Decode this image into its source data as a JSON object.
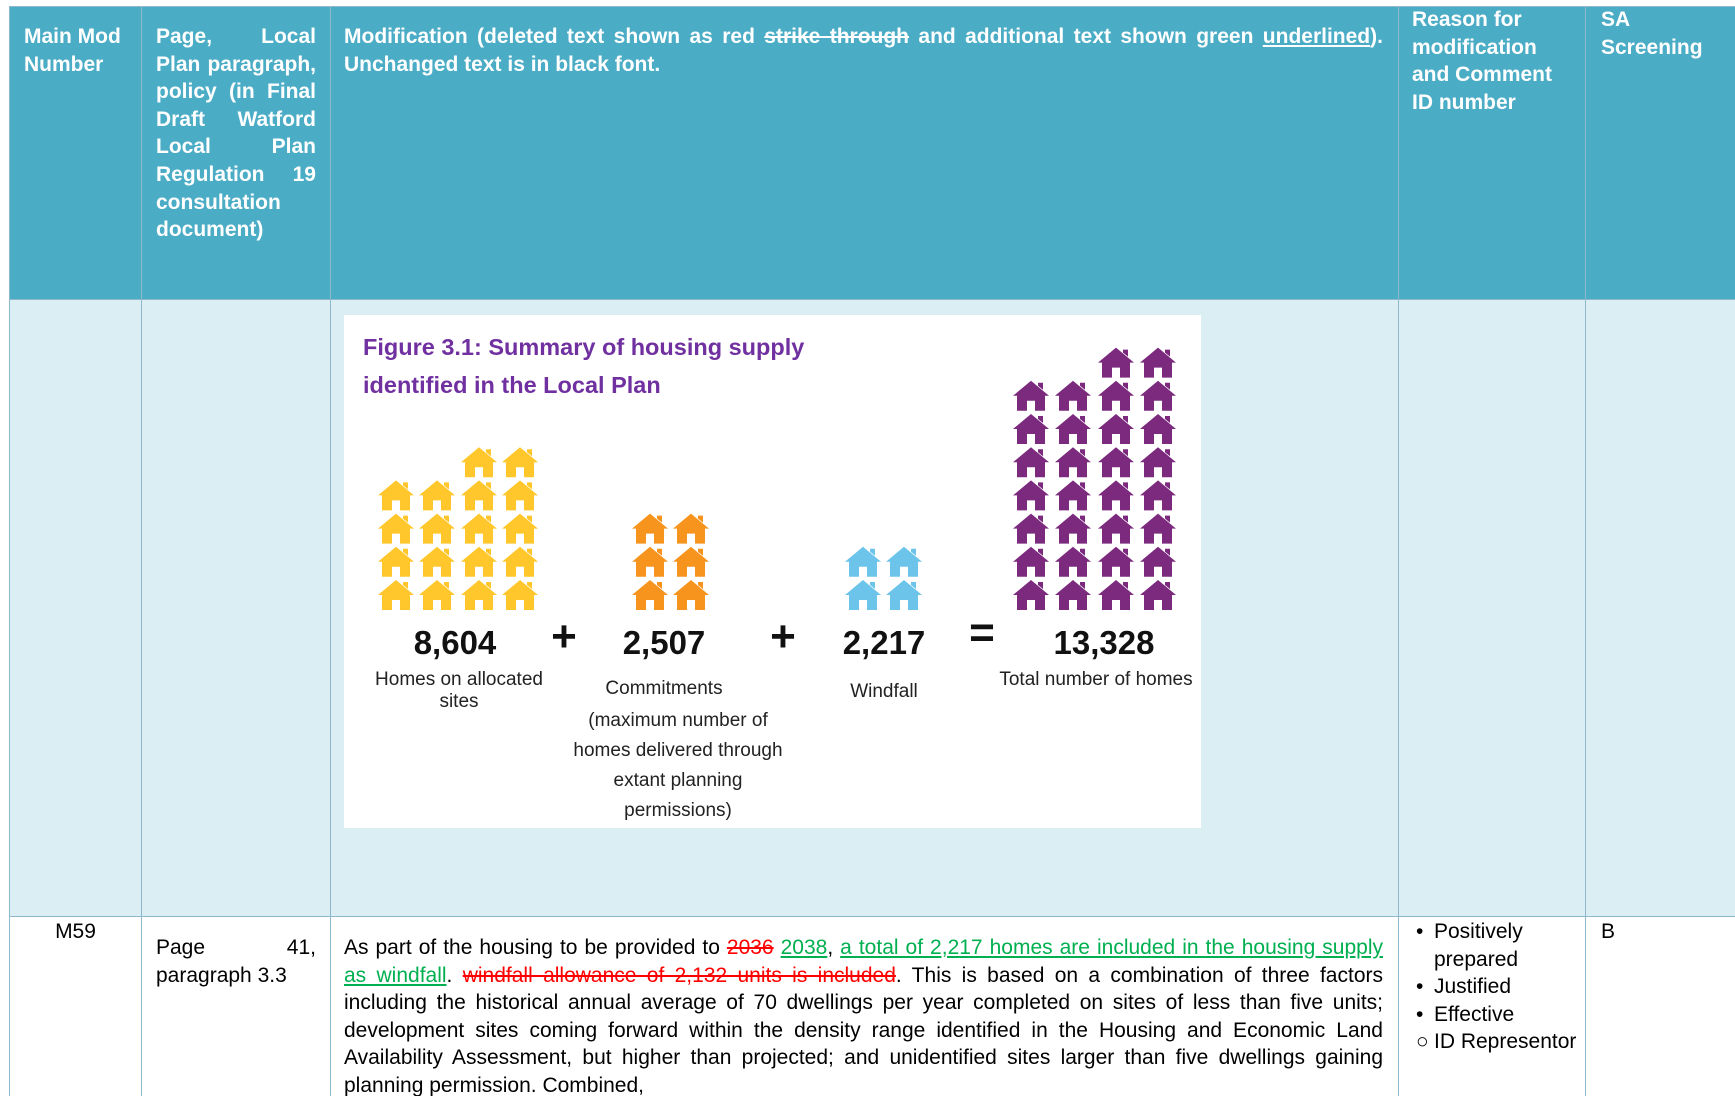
{
  "header": {
    "main_mod_number": "Main Mod Number",
    "page": "Page, Local Plan paragraph, policy (in Final Draft Watford Local Plan Regulation 19 consultation document)",
    "modification": [
      {
        "text": "Modification (deleted text shown as red "
      },
      {
        "text": "strike through",
        "mark": "del"
      },
      {
        "text": " and additional text shown green "
      },
      {
        "text": "underlined",
        "mark": "ins"
      },
      {
        "text": "). Unchanged text is in black font."
      }
    ],
    "reason": "Reason for modification and Comment ID number",
    "sa_screening": "SA Screening"
  },
  "figure": {
    "title": "Figure 3.1: Summary of housing supply identified in the Local Plan",
    "items": [
      {
        "value": "8,604",
        "label": "Homes on allocated sites"
      },
      {
        "value": "2,507",
        "label": "Commitments",
        "note": "(maximum number of homes delivered through extant planning permissions)"
      },
      {
        "value": "2,217",
        "label": "Windfall"
      },
      {
        "value": "13,328",
        "label": "Total number of homes"
      }
    ],
    "operators": [
      "+",
      "+",
      "="
    ]
  },
  "rows": [
    {
      "mod": "M59",
      "page": "Page 41, paragraph 3.3",
      "modification": [
        {
          "text": "As part of the housing to be provided to "
        },
        {
          "text": "2036",
          "mark": "del"
        },
        {
          "text": " "
        },
        {
          "text": "2038",
          "mark": "ins"
        },
        {
          "text": ", "
        },
        {
          "text": "a total of 2,217 homes are included in the housing supply as windfall",
          "mark": "ins"
        },
        {
          "text": ". "
        },
        {
          "text": "windfall allowance of 2,132 units is included",
          "mark": "del"
        },
        {
          "text": ". This is based on a combination of three factors including the historical annual average of 70 dwellings per year completed on sites of less than five units; development sites coming forward within the density range identified in the Housing and Economic Land Availability Assessment, but higher than projected; and unidentified sites larger than five dwellings gaining planning permission. Combined,"
        }
      ],
      "reasons": [
        {
          "text": "Positively prepared",
          "bullet": "disc"
        },
        {
          "text": "Justified",
          "bullet": "disc"
        },
        {
          "text": "Effective",
          "bullet": "disc"
        },
        {
          "text": "ID Representor",
          "bullet": "circle"
        }
      ],
      "sa": "B"
    }
  ]
}
